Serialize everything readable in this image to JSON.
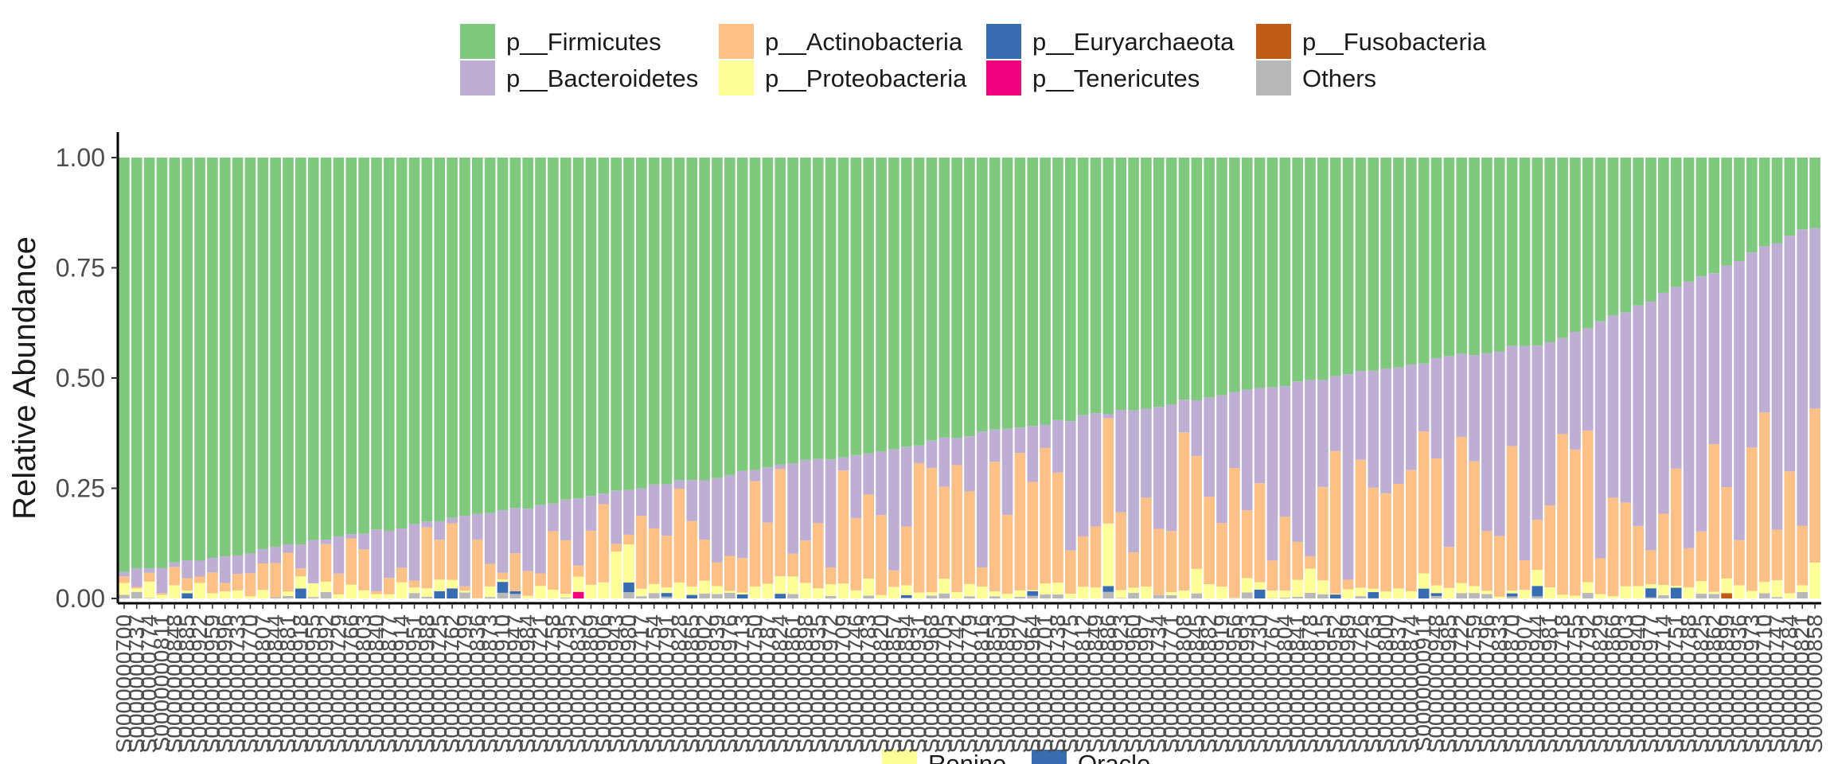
{
  "chart_data": {
    "type": "bar",
    "stacked": true,
    "title": "",
    "xlabel": "",
    "ylabel": "Relative Abundance",
    "ylim": [
      0,
      1
    ],
    "yticks": [
      "0.00",
      "0.25",
      "0.50",
      "0.75",
      "1.00"
    ],
    "grid": false,
    "legend_position": "top",
    "sample_label_prefix": "S",
    "group_legend": {
      "title": "",
      "entries": [
        {
          "name": "Renine",
          "color": "#FFFF99"
        },
        {
          "name": "Oracle",
          "color": "#386CB0"
        }
      ]
    },
    "series": [
      {
        "name": "p__Firmicutes",
        "color": "#7FC97F"
      },
      {
        "name": "p__Bacteroidetes",
        "color": "#BEAED4"
      },
      {
        "name": "p__Actinobacteria",
        "color": "#FDC086"
      },
      {
        "name": "p__Proteobacteria",
        "color": "#FFFF99"
      },
      {
        "name": "p__Euryarchaeota",
        "color": "#386CB0"
      },
      {
        "name": "p__Tenericutes",
        "color": "#F0027F"
      },
      {
        "name": "p__Fusobacteria",
        "color": "#BF5B17"
      },
      {
        "name": "Others",
        "color": "#B8B8B8"
      }
    ],
    "legend_order": [
      "p__Firmicutes",
      "p__Bacteroidetes",
      "p__Actinobacteria",
      "p__Proteobacteria",
      "p__Euryarchaeota",
      "p__Tenericutes",
      "p__Fusobacteria",
      "Others"
    ],
    "sample_count": 135,
    "firmicutes_fraction_range": [
      0.15,
      0.94
    ],
    "bacteroidetes_fraction_range": [
      0.02,
      0.72
    ],
    "actinobacteria_fraction_range": [
      0.0,
      0.45
    ],
    "proteobacteria_fraction_range": [
      0.0,
      0.17
    ],
    "euryarchaeota_fraction_range": [
      0.0,
      0.07
    ],
    "others_fraction_range": [
      0.0,
      0.02
    ]
  }
}
